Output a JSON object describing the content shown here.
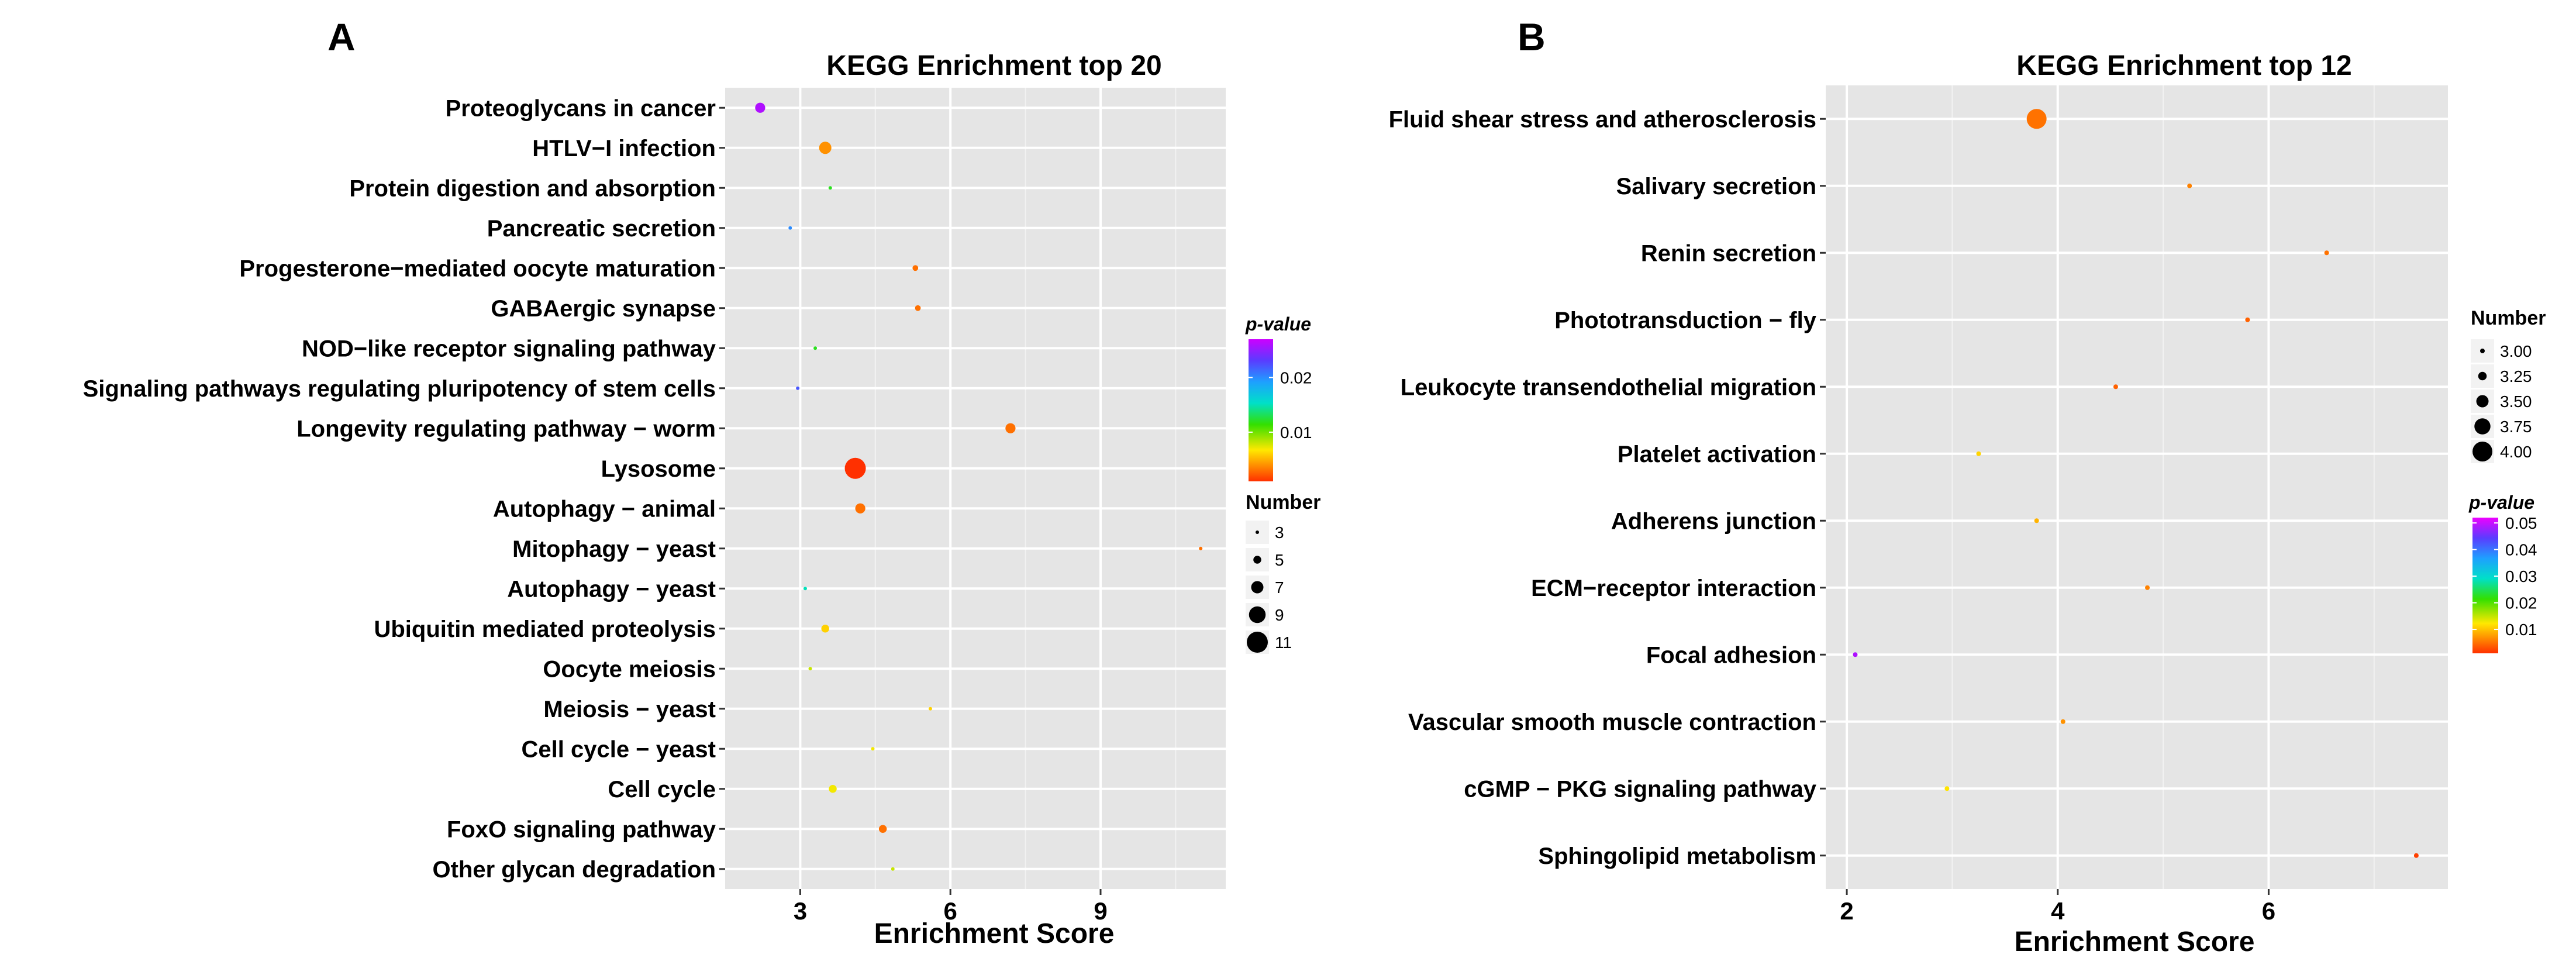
{
  "panels": [
    {
      "letter": "A",
      "title": "KEGG Enrichment top 20",
      "xlabel": "Enrichment Score",
      "pvalue_legend": {
        "title": "p-value",
        "ticks": [
          0.02,
          0.01
        ],
        "tick_labels": [
          "0.02",
          "0.01"
        ],
        "range": [
          0.001,
          0.027
        ]
      },
      "number_legend": {
        "title": "Number",
        "values": [
          3,
          5,
          7,
          9,
          11
        ],
        "labels": [
          "3",
          "5",
          "7",
          "9",
          "11"
        ]
      }
    },
    {
      "letter": "B",
      "title": "KEGG Enrichment top 12",
      "xlabel": "Enrichment Score",
      "number_legend": {
        "title": "Number",
        "values": [
          3.0,
          3.25,
          3.5,
          3.75,
          4.0
        ],
        "labels": [
          "3.00",
          "3.25",
          "3.50",
          "3.75",
          "4.00"
        ]
      },
      "pvalue_legend": {
        "title": "p-value",
        "ticks": [
          0.05,
          0.04,
          0.03,
          0.02,
          0.01
        ],
        "tick_labels": [
          "0.05",
          "0.04",
          "0.03",
          "0.02",
          "0.01"
        ],
        "range": [
          0.001,
          0.052
        ]
      }
    }
  ],
  "chart_data": [
    {
      "type": "scatter",
      "title": "KEGG Enrichment top 20",
      "xlabel": "Enrichment Score",
      "ylabel": "",
      "xlim": [
        1.5,
        11.5
      ],
      "xticks": [
        3,
        6,
        9
      ],
      "grid": true,
      "size_range": [
        3,
        11
      ],
      "categories": [
        "Proteoglycans in cancer",
        "HTLV−I infection",
        "Protein digestion and absorption",
        "Pancreatic secretion",
        "Progesterone−mediated oocyte maturation",
        "GABAergic synapse",
        "NOD−like receptor signaling pathway",
        "Signaling pathways regulating pluripotency of stem cells",
        "Longevity regulating pathway − worm",
        "Lysosome",
        "Autophagy − animal",
        "Mitophagy − yeast",
        "Autophagy − yeast",
        "Ubiquitin mediated proteolysis",
        "Oocyte meiosis",
        "Meiosis − yeast",
        "Cell cycle − yeast",
        "Cell cycle",
        "FoxO signaling pathway",
        "Other glycan degradation"
      ],
      "x": [
        2.2,
        3.5,
        3.6,
        2.8,
        5.3,
        5.35,
        3.3,
        2.95,
        7.2,
        4.1,
        4.2,
        11.0,
        3.1,
        3.5,
        3.2,
        5.6,
        4.45,
        3.65,
        4.65,
        4.85
      ],
      "number": [
        6,
        7,
        3,
        3,
        4,
        4,
        3,
        3,
        6,
        11,
        6,
        3,
        3,
        5,
        3,
        3,
        3,
        5,
        5,
        3
      ],
      "pvalue": [
        0.026,
        0.004,
        0.012,
        0.02,
        0.003,
        0.003,
        0.012,
        0.022,
        0.003,
        0.001,
        0.003,
        0.003,
        0.015,
        0.006,
        0.008,
        0.006,
        0.007,
        0.007,
        0.003,
        0.008
      ]
    },
    {
      "type": "scatter",
      "title": "KEGG Enrichment top 12",
      "xlabel": "Enrichment Score",
      "ylabel": "",
      "xlim": [
        1.8,
        7.7
      ],
      "xticks": [
        2,
        4,
        6
      ],
      "grid": true,
      "size_range": [
        3.0,
        4.0
      ],
      "categories": [
        "Fluid shear stress and atherosclerosis",
        "Salivary secretion",
        "Renin secretion",
        "Phototransduction − fly",
        "Leukocyte transendothelial migration",
        "Platelet activation",
        "Adherens junction",
        "ECM−receptor interaction",
        "Focal adhesion",
        "Vascular smooth muscle contraction",
        "cGMP − PKG signaling pathway",
        "Sphingolipid metabolism"
      ],
      "x": [
        3.8,
        5.25,
        6.55,
        5.8,
        4.55,
        3.25,
        3.8,
        4.85,
        2.08,
        4.05,
        2.95,
        7.4
      ],
      "number": [
        4,
        3,
        3,
        3,
        3,
        3,
        3,
        3,
        3,
        3,
        3,
        3
      ],
      "pvalue": [
        0.005,
        0.006,
        0.005,
        0.004,
        0.004,
        0.011,
        0.009,
        0.006,
        0.05,
        0.007,
        0.012,
        0.002
      ]
    }
  ]
}
